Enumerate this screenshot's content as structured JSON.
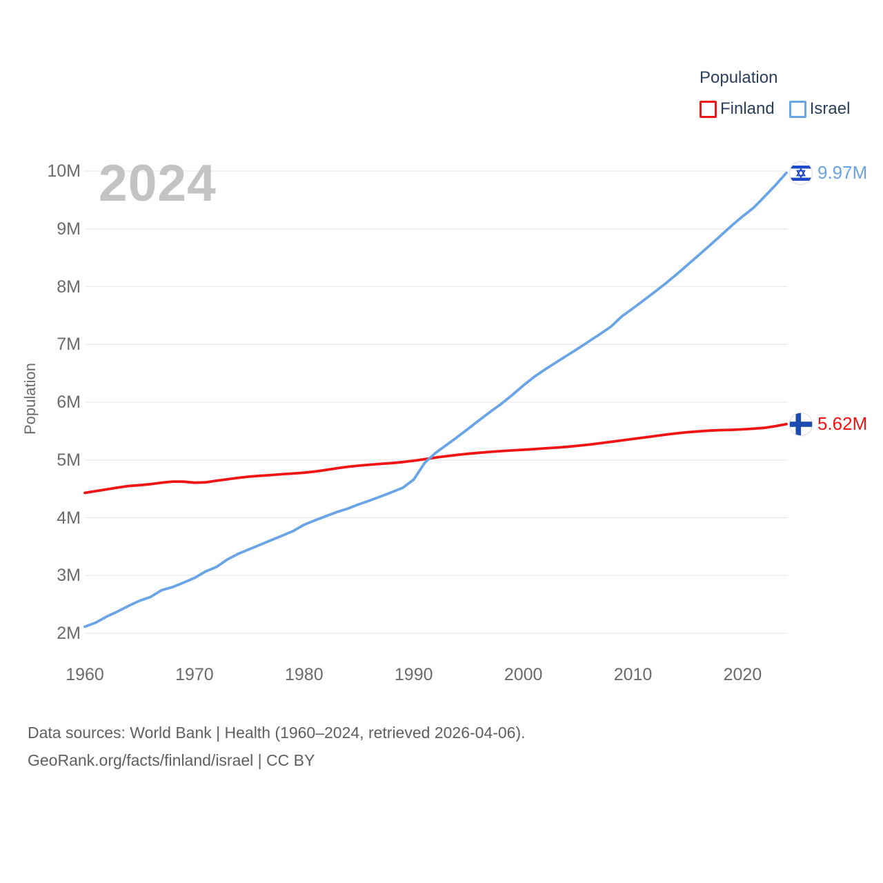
{
  "legend": {
    "title": "Population"
  },
  "footer": {
    "line1": "Data sources: World Bank | Health (1960–2024, retrieved 2026-04-06).",
    "line2": "GeoRank.org/facts/finland/israel | CC BY"
  },
  "chart_data": {
    "type": "line",
    "year_badge": "2024",
    "ylabel": "Population",
    "xlabel": "",
    "x_range": [
      1960,
      2024
    ],
    "y_range_millions": [
      2,
      10
    ],
    "grid": "horizontal-light",
    "legend_position": "top-right",
    "xticks": [
      1960,
      1970,
      1980,
      1990,
      2000,
      2010,
      2020
    ],
    "yticks": [
      {
        "value": 2,
        "label": "2M"
      },
      {
        "value": 3,
        "label": "3M"
      },
      {
        "value": 4,
        "label": "4M"
      },
      {
        "value": 5,
        "label": "5M"
      },
      {
        "value": 6,
        "label": "6M"
      },
      {
        "value": 7,
        "label": "7M"
      },
      {
        "value": 8,
        "label": "8M"
      },
      {
        "value": 9,
        "label": "9M"
      },
      {
        "value": 10,
        "label": "10M"
      }
    ],
    "years": [
      1960,
      1961,
      1962,
      1963,
      1964,
      1965,
      1966,
      1967,
      1968,
      1969,
      1970,
      1971,
      1972,
      1973,
      1974,
      1975,
      1976,
      1977,
      1978,
      1979,
      1980,
      1981,
      1982,
      1983,
      1984,
      1985,
      1986,
      1987,
      1988,
      1989,
      1990,
      1991,
      1992,
      1993,
      1994,
      1995,
      1996,
      1997,
      1998,
      1999,
      2000,
      2001,
      2002,
      2003,
      2004,
      2005,
      2006,
      2007,
      2008,
      2009,
      2010,
      2011,
      2012,
      2013,
      2014,
      2015,
      2016,
      2017,
      2018,
      2019,
      2020,
      2021,
      2022,
      2023,
      2024
    ],
    "series": [
      {
        "name": "Finland",
        "color": "#f01414",
        "flag": "finland",
        "end_label": "5.62M",
        "values_millions": [
          4.43,
          4.461,
          4.491,
          4.523,
          4.549,
          4.564,
          4.581,
          4.606,
          4.626,
          4.624,
          4.606,
          4.612,
          4.64,
          4.666,
          4.691,
          4.712,
          4.726,
          4.739,
          4.753,
          4.765,
          4.78,
          4.8,
          4.827,
          4.856,
          4.882,
          4.902,
          4.918,
          4.932,
          4.946,
          4.964,
          4.986,
          5.014,
          5.042,
          5.066,
          5.088,
          5.108,
          5.125,
          5.14,
          5.153,
          5.165,
          5.176,
          5.188,
          5.201,
          5.213,
          5.228,
          5.246,
          5.266,
          5.289,
          5.313,
          5.339,
          5.363,
          5.388,
          5.414,
          5.439,
          5.462,
          5.48,
          5.495,
          5.508,
          5.516,
          5.521,
          5.53,
          5.541,
          5.556,
          5.584,
          5.62
        ]
      },
      {
        "name": "Israel",
        "color": "#68a4e6",
        "flag": "israel",
        "end_label": "9.97M",
        "values_millions": [
          2.114,
          2.185,
          2.29,
          2.379,
          2.475,
          2.563,
          2.629,
          2.745,
          2.799,
          2.877,
          2.958,
          3.069,
          3.148,
          3.278,
          3.377,
          3.455,
          3.533,
          3.612,
          3.689,
          3.77,
          3.878,
          3.956,
          4.027,
          4.099,
          4.159,
          4.233,
          4.299,
          4.369,
          4.442,
          4.518,
          4.66,
          4.949,
          5.123,
          5.261,
          5.399,
          5.545,
          5.692,
          5.836,
          5.971,
          6.125,
          6.289,
          6.439,
          6.57,
          6.69,
          6.809,
          6.93,
          7.054,
          7.18,
          7.309,
          7.486,
          7.624,
          7.766,
          7.91,
          8.059,
          8.216,
          8.38,
          8.546,
          8.713,
          8.882,
          9.054,
          9.216,
          9.364,
          9.557,
          9.757,
          9.97
        ]
      }
    ],
    "flag_colors": {
      "finland_cross": "#1b4cb0",
      "israel_blue": "#1e4ac8"
    }
  }
}
